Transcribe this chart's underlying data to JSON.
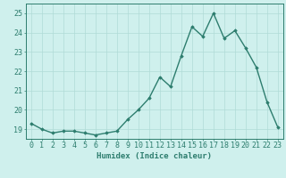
{
  "x": [
    0,
    1,
    2,
    3,
    4,
    5,
    6,
    7,
    8,
    9,
    10,
    11,
    12,
    13,
    14,
    15,
    16,
    17,
    18,
    19,
    20,
    21,
    22,
    23
  ],
  "y": [
    19.3,
    19.0,
    18.8,
    18.9,
    18.9,
    18.8,
    18.7,
    18.8,
    18.9,
    19.5,
    20.0,
    20.6,
    21.7,
    21.2,
    22.8,
    24.3,
    23.8,
    25.0,
    23.7,
    24.1,
    23.2,
    22.2,
    20.4,
    19.1
  ],
  "line_color": "#2d7d6e",
  "marker": "D",
  "marker_size": 1.8,
  "bg_color": "#cff0ed",
  "grid_color": "#b0dbd7",
  "xlabel": "Humidex (Indice chaleur)",
  "ylabel_ticks": [
    19,
    20,
    21,
    22,
    23,
    24,
    25
  ],
  "xlim": [
    -0.5,
    23.5
  ],
  "ylim": [
    18.5,
    25.5
  ],
  "tick_color": "#2d7d6e",
  "label_color": "#2d7d6e",
  "font_size_xlabel": 6.5,
  "font_size_ticks": 6.0,
  "linewidth": 1.0
}
